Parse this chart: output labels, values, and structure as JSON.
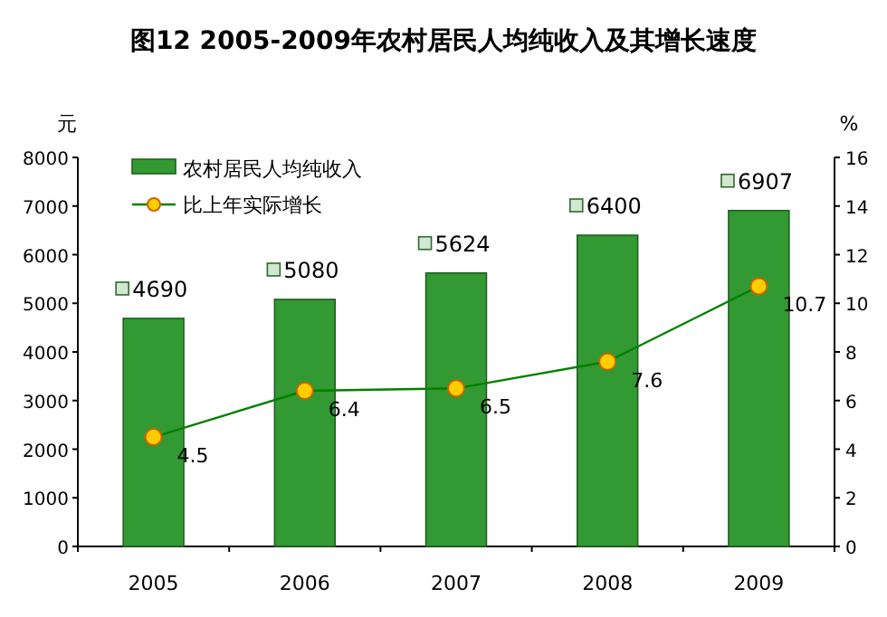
{
  "chart_data": {
    "type": "bar",
    "title": "图12  2005-2009年农村居民人均纯收入及其增长速度",
    "categories": [
      "2005",
      "2006",
      "2007",
      "2008",
      "2009"
    ],
    "ylabel": "元",
    "y2label": "%",
    "ylim": [
      0,
      8000
    ],
    "yticks": [
      0,
      1000,
      2000,
      3000,
      4000,
      5000,
      6000,
      7000,
      8000
    ],
    "y2lim": [
      0,
      16
    ],
    "y2ticks": [
      0,
      2,
      4,
      6,
      8,
      10,
      12,
      14,
      16
    ],
    "legend": "top left",
    "data_labels": true,
    "series": [
      {
        "name": "农村居民人均纯收入",
        "color": "#339933",
        "values": [
          4690,
          5080,
          5624,
          6400,
          6907
        ]
      },
      {
        "name": "比上年实际增长",
        "type": "line",
        "axis": "y2",
        "color": "#008000",
        "marker": "circle",
        "values": [
          4.5,
          6.4,
          6.5,
          7.6,
          10.7
        ]
      }
    ]
  }
}
